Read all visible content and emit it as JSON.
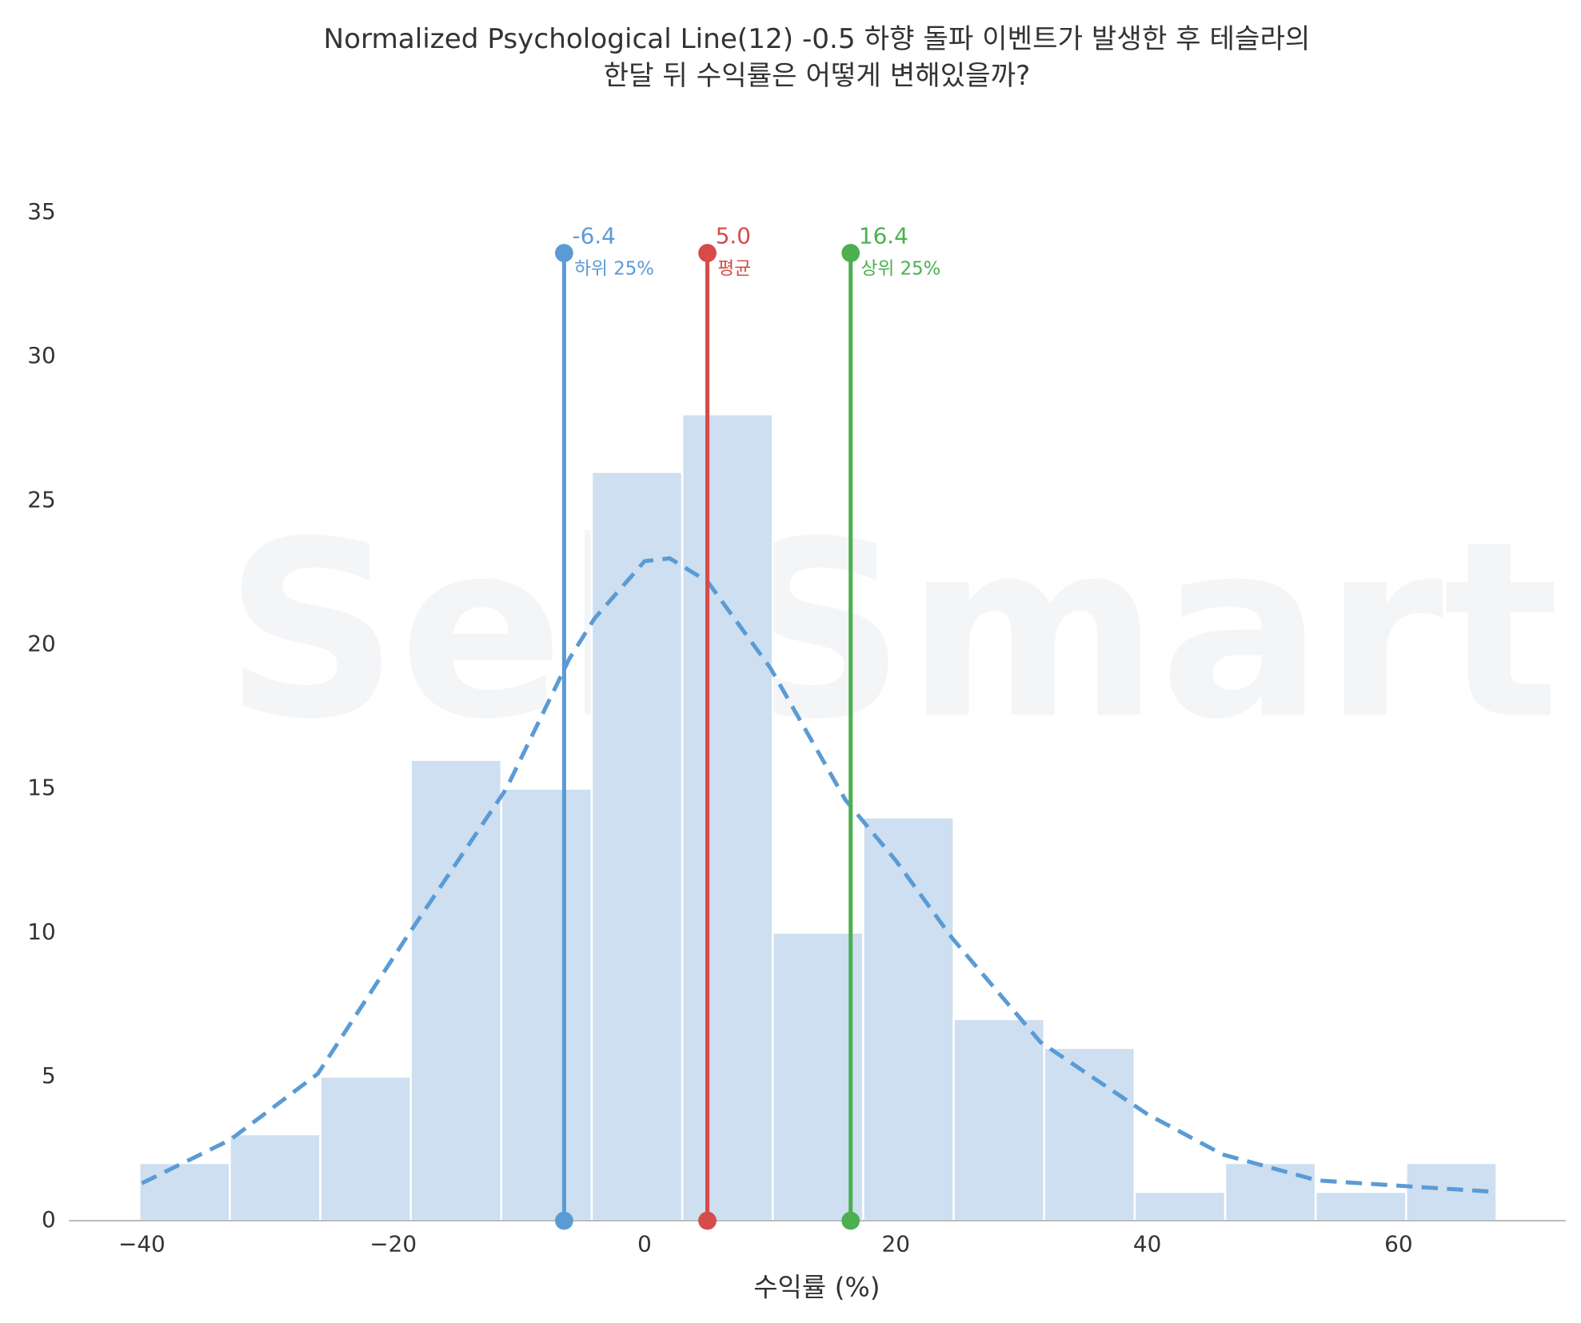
{
  "chart_data": {
    "type": "histogram",
    "title": [
      "Normalized Psychological Line(12) -0.5 하향 돌파 이벤트가 발생한 후 테슬라의",
      "한달 뒤 수익률은 어떻게 변해있을까?"
    ],
    "xlabel": "수익률 (%)",
    "watermark": "SellSmart",
    "bins": [
      -40.2,
      -33.0,
      -25.8,
      -18.6,
      -11.4,
      -4.2,
      3.0,
      10.2,
      17.4,
      24.6,
      31.8,
      39.0,
      46.2,
      53.4,
      60.6,
      67.8
    ],
    "counts": [
      2,
      3,
      5,
      16,
      15,
      26,
      28,
      10,
      14,
      7,
      6,
      1,
      2,
      1,
      2
    ],
    "color": "#cddff0",
    "kde": {
      "color": "#5b9bd5",
      "x": [
        -40,
        -33,
        -26,
        -19,
        -11,
        -6,
        -4,
        0,
        2,
        5,
        10,
        16,
        20,
        24.5,
        31.5,
        40,
        46,
        53.5,
        60.5,
        67.7
      ],
      "y": [
        1.3,
        2.8,
        5.1,
        9.8,
        15,
        19.5,
        20.9,
        22.9,
        23,
        22.2,
        19.2,
        14.6,
        12.5,
        9.8,
        6.2,
        3.7,
        2.3,
        1.4,
        1.2,
        1.0
      ]
    },
    "vlines": {
      "values": [
        -6.4,
        5.0,
        16.4
      ],
      "value_labels": [
        "-6.4",
        "5.0",
        "16.4"
      ],
      "labels": [
        "하위 25%",
        "평균",
        "상위 25%"
      ],
      "colors": [
        "#5b9bd5",
        "#d64b4b",
        "#4caf50"
      ]
    },
    "xlim": [
      -45.8,
      73.3
    ],
    "ylim": [
      0,
      35
    ],
    "xticks": [
      {
        "value": -40,
        "label": "−40"
      },
      {
        "value": -20,
        "label": "−20"
      },
      0,
      20,
      40,
      60
    ],
    "yticks": [
      0,
      5,
      10,
      15,
      20,
      25,
      30,
      35
    ]
  }
}
